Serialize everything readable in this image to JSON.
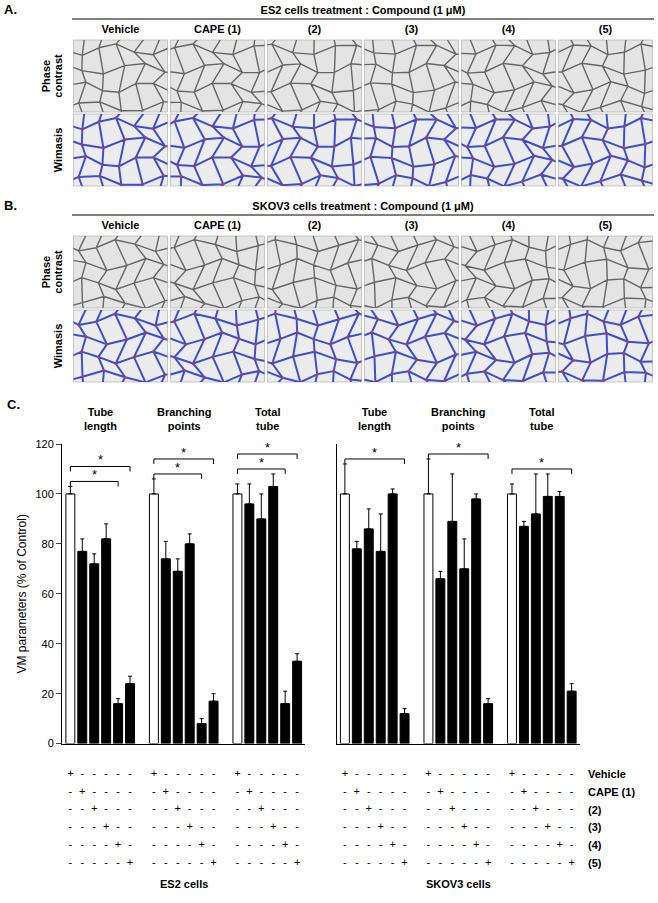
{
  "figure": {
    "panels": [
      {
        "letter": "A.",
        "title": "ES2 cells treatment : Compound (1 μM)",
        "columns": [
          "Vehicle",
          "CAPE (1)",
          "(2)",
          "(3)",
          "(4)",
          "(5)"
        ],
        "rows": [
          "Phase contrast",
          "Wimasis"
        ]
      },
      {
        "letter": "B.",
        "title": "SKOV3 cells treatment : Compound (1 μM)",
        "columns": [
          "Vehicle",
          "CAPE (1)",
          "(2)",
          "(3)",
          "(4)",
          "(5)"
        ],
        "rows": [
          "Phase contrast",
          "Wimasis"
        ]
      }
    ],
    "chart_letter": "C."
  },
  "chart_data": [
    {
      "type": "bar",
      "title": "ES2 cells",
      "y_label": "VM parameters (% of Control)",
      "categories": [
        "Vehicle",
        "CAPE (1)",
        "(2)",
        "(3)",
        "(4)",
        "(5)"
      ],
      "colors": [
        "#ffffff",
        "#000000",
        "#000000",
        "#000000",
        "#000000",
        "#000000"
      ],
      "series": [
        {
          "name": "Tube length",
          "values": [
            100,
            77,
            72,
            82,
            16,
            24
          ],
          "error": [
            3,
            5,
            4,
            6,
            2,
            3
          ]
        },
        {
          "name": "Branching points",
          "values": [
            100,
            74,
            69,
            80,
            8,
            17
          ],
          "error": [
            6,
            7,
            5,
            4,
            2,
            3
          ]
        },
        {
          "name": "Total tube",
          "values": [
            100,
            96,
            90,
            103,
            16,
            33
          ],
          "error": [
            4,
            8,
            10,
            5,
            5,
            3
          ]
        }
      ],
      "ylim": [
        0,
        120
      ],
      "yticks": [
        0,
        20,
        40,
        60,
        80,
        100,
        120
      ],
      "tick_labels": "y",
      "significance": [
        {
          "group": "Tube length",
          "from": "Vehicle",
          "to": "(4)",
          "label": "*"
        },
        {
          "group": "Tube length",
          "from": "Vehicle",
          "to": "(5)",
          "label": "*"
        },
        {
          "group": "Branching points",
          "from": "Vehicle",
          "to": "(4)",
          "label": "*"
        },
        {
          "group": "Branching points",
          "from": "Vehicle",
          "to": "(5)",
          "label": "*"
        },
        {
          "group": "Total tube",
          "from": "Vehicle",
          "to": "(4)",
          "label": "*"
        },
        {
          "group": "Total tube",
          "from": "Vehicle",
          "to": "(5)",
          "label": "*"
        }
      ],
      "matrix": {
        "on": "+",
        "off": "-"
      }
    },
    {
      "type": "bar",
      "title": "SKOV3 cells",
      "categories": [
        "Vehicle",
        "CAPE (1)",
        "(2)",
        "(3)",
        "(4)",
        "(5)"
      ],
      "colors": [
        "#ffffff",
        "#000000",
        "#000000",
        "#000000",
        "#000000",
        "#000000"
      ],
      "series": [
        {
          "name": "Tube length",
          "values": [
            100,
            78,
            86,
            77,
            100,
            12
          ],
          "error": [
            12,
            3,
            8,
            15,
            2,
            2
          ]
        },
        {
          "name": "Branching points",
          "values": [
            100,
            66,
            89,
            70,
            98,
            16
          ],
          "error": [
            14,
            3,
            19,
            12,
            2,
            2
          ]
        },
        {
          "name": "Total tube",
          "values": [
            100,
            87,
            92,
            99,
            99,
            21
          ],
          "error": [
            4,
            2,
            16,
            9,
            2,
            3
          ]
        }
      ],
      "ylim": [
        0,
        120
      ],
      "tick_labels": false,
      "significance": [
        {
          "group": "Tube length",
          "from": "Vehicle",
          "to": "(5)",
          "label": "*"
        },
        {
          "group": "Branching points",
          "from": "Vehicle",
          "to": "(5)",
          "label": "*"
        },
        {
          "group": "Total tube",
          "from": "Vehicle",
          "to": "(5)",
          "label": "*"
        }
      ],
      "matrix": {
        "on": "+",
        "off": "-"
      }
    }
  ]
}
